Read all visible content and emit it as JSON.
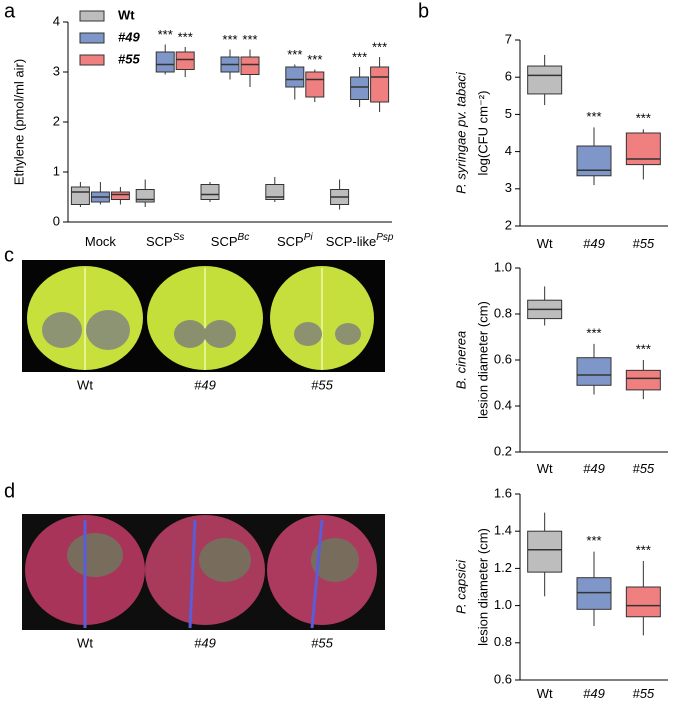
{
  "panel_labels": [
    "a",
    "b",
    "c",
    "d"
  ],
  "photos": [
    {
      "labels": [
        "Wt",
        "#49",
        "#55"
      ]
    },
    {
      "labels": [
        "Wt",
        "#49",
        "#55"
      ]
    }
  ],
  "chart_data": [
    {
      "type": "box",
      "ylabel": "Ethylene (pmol/ml air)",
      "categories": [
        "Mock",
        "SCP",
        "SCP",
        "SCP",
        "SCP-like"
      ],
      "category_superscripts": [
        null,
        "Ss",
        "Bc",
        "Pi",
        "Psp"
      ],
      "ylim": [
        0,
        4
      ],
      "yticks": [
        0,
        1,
        2,
        3,
        4
      ],
      "legend": "upper left",
      "series": [
        {
          "name": "Wt",
          "color": "#bdbdbd",
          "values": [
            {
              "min": 0.3,
              "q1": 0.35,
              "median": 0.6,
              "q3": 0.7,
              "max": 0.8
            },
            {
              "min": 0.3,
              "q1": 0.4,
              "median": 0.45,
              "q3": 0.65,
              "max": 0.85
            },
            {
              "min": 0.4,
              "q1": 0.45,
              "median": 0.55,
              "q3": 0.75,
              "max": 0.8
            },
            {
              "min": 0.4,
              "q1": 0.45,
              "median": 0.5,
              "q3": 0.75,
              "max": 0.9
            },
            {
              "min": 0.25,
              "q1": 0.35,
              "median": 0.5,
              "q3": 0.65,
              "max": 0.85
            }
          ]
        },
        {
          "name": "#49",
          "color": "#7f96c8",
          "annotations": [
            null,
            "***",
            "***",
            "***",
            "***"
          ],
          "values": [
            {
              "min": 0.35,
              "q1": 0.4,
              "median": 0.5,
              "q3": 0.6,
              "max": 0.8
            },
            {
              "min": 2.95,
              "q1": 3.0,
              "median": 3.15,
              "q3": 3.4,
              "max": 3.55
            },
            {
              "min": 2.85,
              "q1": 3.0,
              "median": 3.15,
              "q3": 3.3,
              "max": 3.45
            },
            {
              "min": 2.45,
              "q1": 2.7,
              "median": 2.85,
              "q3": 3.1,
              "max": 3.15
            },
            {
              "min": 2.3,
              "q1": 2.45,
              "median": 2.7,
              "q3": 2.9,
              "max": 3.1
            }
          ]
        },
        {
          "name": "#55",
          "color": "#f08080",
          "annotations": [
            null,
            "***",
            "***",
            "***",
            "***"
          ],
          "values": [
            {
              "min": 0.35,
              "q1": 0.45,
              "median": 0.55,
              "q3": 0.6,
              "max": 0.7
            },
            {
              "min": 2.9,
              "q1": 3.05,
              "median": 3.25,
              "q3": 3.4,
              "max": 3.5
            },
            {
              "min": 2.7,
              "q1": 2.95,
              "median": 3.15,
              "q3": 3.3,
              "max": 3.45
            },
            {
              "min": 2.4,
              "q1": 2.5,
              "median": 2.85,
              "q3": 3.0,
              "max": 3.05
            },
            {
              "min": 2.2,
              "q1": 2.4,
              "median": 2.9,
              "q3": 3.1,
              "max": 3.3
            }
          ]
        }
      ]
    },
    {
      "type": "box",
      "ylabel": [
        "P. syringae pv. tabaci",
        "log(CFU cm⁻²)"
      ],
      "categories": [
        "Wt",
        "#49",
        "#55"
      ],
      "colors": [
        "#bdbdbd",
        "#7f96c8",
        "#f08080"
      ],
      "ylim": [
        2,
        7
      ],
      "yticks": [
        2,
        3,
        4,
        5,
        6,
        7
      ],
      "annotations": [
        null,
        "***",
        "***"
      ],
      "values": [
        {
          "min": 5.25,
          "q1": 5.55,
          "median": 6.05,
          "q3": 6.3,
          "max": 6.6
        },
        {
          "min": 3.1,
          "q1": 3.35,
          "median": 3.5,
          "q3": 4.15,
          "max": 4.65
        },
        {
          "min": 3.25,
          "q1": 3.65,
          "median": 3.8,
          "q3": 4.5,
          "max": 4.6
        }
      ]
    },
    {
      "type": "box",
      "ylabel": [
        "B. cinerea",
        "lesion diameter (cm)"
      ],
      "categories": [
        "Wt",
        "#49",
        "#55"
      ],
      "colors": [
        "#bdbdbd",
        "#7f96c8",
        "#f08080"
      ],
      "ylim": [
        0.2,
        1.0
      ],
      "yticks": [
        0.2,
        0.4,
        0.6,
        0.8,
        {
          "value": 1.0,
          "label": "1.0"
        }
      ],
      "annotations": [
        null,
        "***",
        "***"
      ],
      "values": [
        {
          "min": 0.75,
          "q1": 0.78,
          "median": 0.82,
          "q3": 0.86,
          "max": 0.92
        },
        {
          "min": 0.45,
          "q1": 0.49,
          "median": 0.535,
          "q3": 0.61,
          "max": 0.67
        },
        {
          "min": 0.43,
          "q1": 0.47,
          "median": 0.52,
          "q3": 0.555,
          "max": 0.6
        }
      ]
    },
    {
      "type": "box",
      "ylabel": [
        "P. capsici",
        "lesion diameter (cm)"
      ],
      "categories": [
        "Wt",
        "#49",
        "#55"
      ],
      "colors": [
        "#bdbdbd",
        "#7f96c8",
        "#f08080"
      ],
      "ylim": [
        0.6,
        1.6
      ],
      "yticks": [
        0.6,
        0.8,
        {
          "value": 1.0,
          "label": "1.0"
        },
        1.2,
        1.4,
        1.6
      ],
      "annotations": [
        null,
        "***",
        "***"
      ],
      "values": [
        {
          "min": 1.05,
          "q1": 1.18,
          "median": 1.3,
          "q3": 1.4,
          "max": 1.5
        },
        {
          "min": 0.89,
          "q1": 0.98,
          "median": 1.07,
          "q3": 1.15,
          "max": 1.29
        },
        {
          "min": 0.84,
          "q1": 0.94,
          "median": 1.0,
          "q3": 1.1,
          "max": 1.24
        }
      ]
    }
  ]
}
